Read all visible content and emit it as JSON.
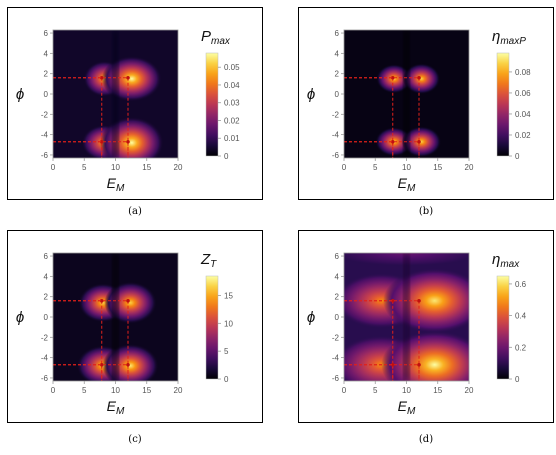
{
  "chart_data": [
    {
      "type": "heatmap",
      "panel_label": "(a)",
      "xlabel_main": "E",
      "xlabel_sub": "M",
      "ylabel": "ϕ",
      "legend_main": "P",
      "legend_sub": "max",
      "xlim": [
        0,
        20
      ],
      "ylim": [
        -6.3,
        6.3
      ],
      "x_ticks": [
        "0",
        "5",
        "10",
        "15",
        "20"
      ],
      "y_ticks": [
        "6",
        "4",
        "2",
        "0",
        "-2",
        "-4",
        "-6"
      ],
      "colorbar_range": [
        0,
        0.058
      ],
      "colorbar_ticks": [
        "0.05",
        "0.04",
        "0.03",
        "0.02",
        "0.01",
        "0"
      ],
      "colorbar_tick_values": [
        0.05,
        0.04,
        0.03,
        0.02,
        0.01,
        0
      ],
      "peaks": [
        {
          "x": 7.8,
          "y": 1.6
        },
        {
          "x": 12.0,
          "y": 1.6
        },
        {
          "x": 7.8,
          "y": -4.7
        },
        {
          "x": 12.0,
          "y": -4.7
        }
      ],
      "hot_spots": [
        {
          "x": 8.2,
          "y": 1.5,
          "rx": 2.2,
          "ry": 1.1,
          "v": 0.85
        },
        {
          "x": 12.6,
          "y": 1.5,
          "rx": 3.2,
          "ry": 1.4,
          "v": 1.0
        },
        {
          "x": 8.2,
          "y": -4.8,
          "rx": 2.4,
          "ry": 1.1,
          "v": 0.85
        },
        {
          "x": 12.6,
          "y": -4.8,
          "rx": 3.4,
          "ry": 1.6,
          "v": 1.0
        }
      ],
      "background_level": 0.07
    },
    {
      "type": "heatmap",
      "panel_label": "(b)",
      "xlabel_main": "E",
      "xlabel_sub": "M",
      "ylabel": "ϕ",
      "legend_main": "η",
      "legend_sub": "maxP",
      "xlim": [
        0,
        20
      ],
      "ylim": [
        -6.3,
        6.3
      ],
      "x_ticks": [
        "0",
        "5",
        "10",
        "15",
        "20"
      ],
      "y_ticks": [
        "6",
        "4",
        "2",
        "0",
        "-2",
        "-4",
        "-6"
      ],
      "colorbar_range": [
        0,
        0.098
      ],
      "colorbar_ticks": [
        "0.08",
        "0.06",
        "0.04",
        "0.02",
        "0"
      ],
      "colorbar_tick_values": [
        0.08,
        0.06,
        0.04,
        0.02,
        0
      ],
      "peaks": [
        {
          "x": 7.8,
          "y": 1.6
        },
        {
          "x": 12.0,
          "y": 1.6
        },
        {
          "x": 7.8,
          "y": -4.7
        },
        {
          "x": 12.0,
          "y": -4.7
        }
      ],
      "hot_spots": [
        {
          "x": 8.0,
          "y": 1.5,
          "rx": 1.9,
          "ry": 0.9,
          "v": 0.9
        },
        {
          "x": 12.4,
          "y": 1.5,
          "rx": 2.0,
          "ry": 0.95,
          "v": 0.9
        },
        {
          "x": 8.0,
          "y": -4.7,
          "rx": 2.0,
          "ry": 0.9,
          "v": 0.9
        },
        {
          "x": 12.4,
          "y": -4.7,
          "rx": 2.1,
          "ry": 0.95,
          "v": 0.9
        }
      ],
      "background_level": 0.03
    },
    {
      "type": "heatmap",
      "panel_label": "(c)",
      "xlabel_main": "E",
      "xlabel_sub": "M",
      "ylabel": "ϕ",
      "legend_main": "Z",
      "legend_sub": "T",
      "xlim": [
        0,
        20
      ],
      "ylim": [
        -6.3,
        6.3
      ],
      "x_ticks": [
        "0",
        "5",
        "10",
        "15",
        "20"
      ],
      "y_ticks": [
        "6",
        "4",
        "2",
        "0",
        "-2",
        "-4",
        "-6"
      ],
      "colorbar_range": [
        0,
        18.5
      ],
      "colorbar_ticks": [
        "15",
        "10",
        "5",
        "0"
      ],
      "colorbar_tick_values": [
        15,
        10,
        5,
        0
      ],
      "peaks": [
        {
          "x": 7.8,
          "y": 1.6
        },
        {
          "x": 12.0,
          "y": 1.6
        },
        {
          "x": 7.8,
          "y": -4.7
        },
        {
          "x": 12.0,
          "y": -4.7
        }
      ],
      "hot_spots": [
        {
          "x": 8.0,
          "y": 1.4,
          "rx": 2.6,
          "ry": 1.2,
          "v": 0.9
        },
        {
          "x": 12.4,
          "y": 1.4,
          "rx": 2.8,
          "ry": 1.3,
          "v": 0.9
        },
        {
          "x": 8.0,
          "y": -4.8,
          "rx": 2.8,
          "ry": 1.25,
          "v": 0.9
        },
        {
          "x": 12.4,
          "y": -4.8,
          "rx": 3.0,
          "ry": 1.35,
          "v": 0.95
        }
      ],
      "background_level": 0.05
    },
    {
      "type": "heatmap",
      "panel_label": "(d)",
      "xlabel_main": "E",
      "xlabel_sub": "M",
      "ylabel": "ϕ",
      "legend_main": "η",
      "legend_sub": "max",
      "xlim": [
        0,
        20
      ],
      "ylim": [
        -6.3,
        6.3
      ],
      "x_ticks": [
        "0",
        "5",
        "10",
        "15",
        "20"
      ],
      "y_ticks": [
        "6",
        "4",
        "2",
        "0",
        "-2",
        "-4",
        "-6"
      ],
      "colorbar_range": [
        0,
        0.65
      ],
      "colorbar_ticks": [
        "0.6",
        "0.4",
        "0.2",
        "0"
      ],
      "colorbar_tick_values": [
        0.6,
        0.4,
        0.2,
        0
      ],
      "peaks": [
        {
          "x": 7.8,
          "y": 1.6
        },
        {
          "x": 12.0,
          "y": 1.6
        },
        {
          "x": 7.8,
          "y": -4.7
        },
        {
          "x": 12.0,
          "y": -4.7
        }
      ],
      "hot_spots": [
        {
          "x": 6.0,
          "y": 1.6,
          "rx": 5.0,
          "ry": 1.7,
          "v": 0.75
        },
        {
          "x": 14.5,
          "y": 1.6,
          "rx": 5.5,
          "ry": 2.0,
          "v": 0.95
        },
        {
          "x": 6.0,
          "y": -4.7,
          "rx": 5.2,
          "ry": 1.8,
          "v": 0.75
        },
        {
          "x": 14.5,
          "y": -4.7,
          "rx": 5.7,
          "ry": 2.1,
          "v": 1.0
        },
        {
          "x": 10.0,
          "y": 6.3,
          "rx": 8.0,
          "ry": 0.8,
          "v": 0.3
        }
      ],
      "background_level": 0.15
    }
  ]
}
